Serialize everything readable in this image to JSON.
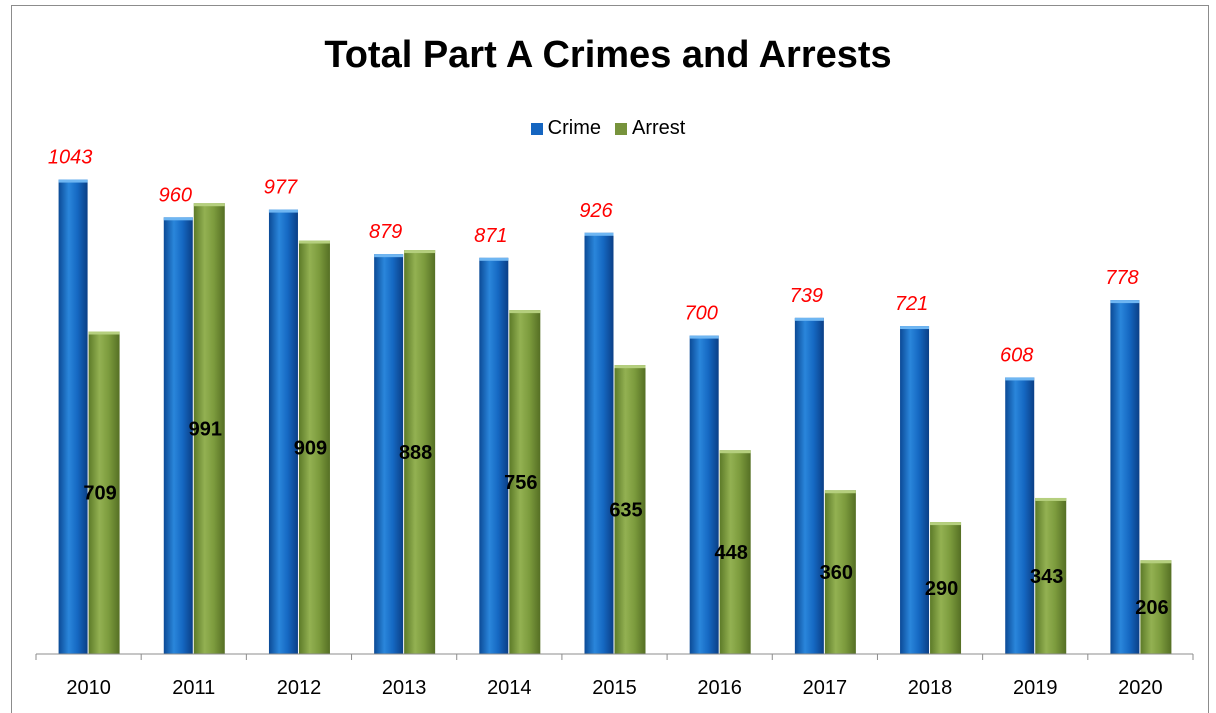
{
  "chart_data": {
    "type": "bar",
    "title": "Total Part A Crimes and Arrests",
    "xlabel": "",
    "ylabel": "",
    "categories": [
      "2010",
      "2011",
      "2012",
      "2013",
      "2014",
      "2015",
      "2016",
      "2017",
      "2018",
      "2019",
      "2020"
    ],
    "series": [
      {
        "name": "Crime",
        "color": "#1565c0",
        "label_color": "#ff0000",
        "label_style": "italic",
        "values": [
          1043,
          960,
          977,
          879,
          871,
          926,
          700,
          739,
          721,
          608,
          778
        ]
      },
      {
        "name": "Arrest",
        "color": "#77933c",
        "label_color": "#000000",
        "label_style": "bold",
        "values": [
          709,
          991,
          909,
          888,
          756,
          635,
          448,
          360,
          290,
          343,
          206
        ]
      }
    ],
    "ylim": [
      0,
      1130
    ],
    "grid": false,
    "legend": "top-center"
  }
}
